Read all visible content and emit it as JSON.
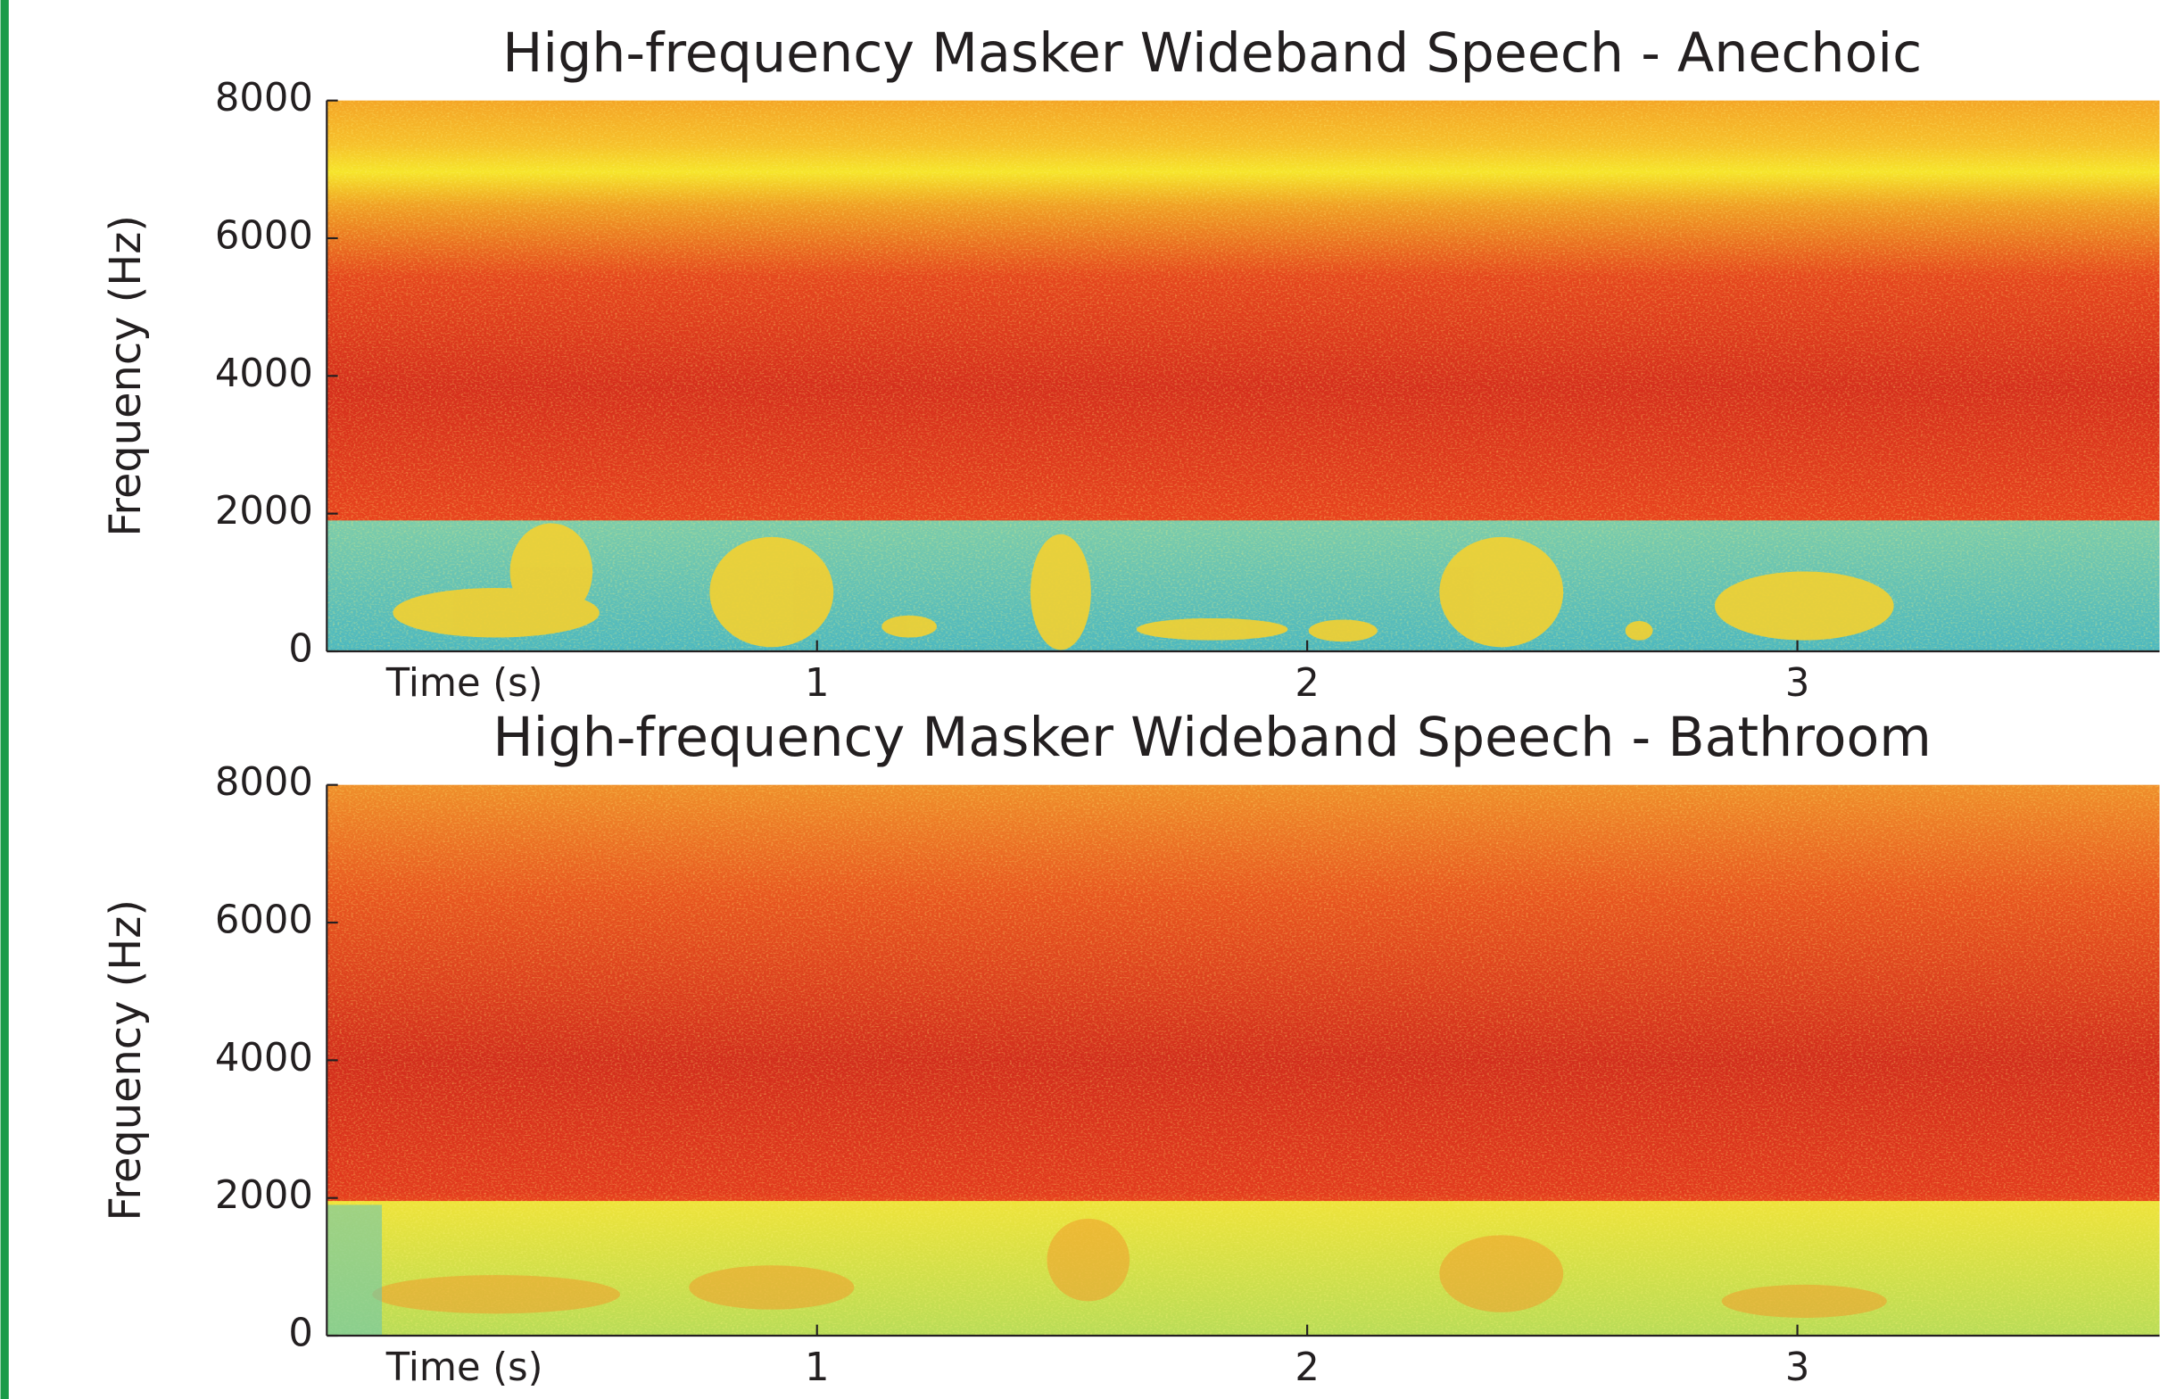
{
  "chart_data": [
    {
      "type": "spectrogram",
      "title": "High-frequency Masker Wideband Speech - Anechoic",
      "ylabel": "Frequency (Hz)",
      "xlabel": "Time (s)",
      "xlim": [
        0,
        3.73
      ],
      "xticks": [
        1,
        2,
        3
      ],
      "ylim": [
        0,
        8000
      ],
      "yticks": [
        0,
        2000,
        4000,
        6000,
        8000
      ]
    },
    {
      "type": "spectrogram",
      "title": "High-frequency Masker Wideband Speech - Bathroom",
      "ylabel": "Frequency (Hz)",
      "xlabel": "Time (s)",
      "xlim": [
        0,
        3.73
      ],
      "xticks": [
        1,
        2,
        3
      ],
      "ylim": [
        0,
        8000
      ],
      "yticks": [
        0,
        2000,
        4000,
        6000,
        8000
      ]
    }
  ]
}
